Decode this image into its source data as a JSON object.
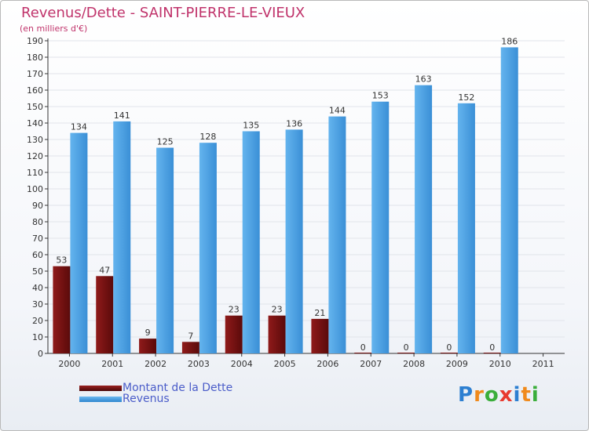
{
  "chart_data": {
    "type": "bar",
    "title": "Revenus/Dette - SAINT-PIERRE-LE-VIEUX",
    "subtitle": "(en milliers d'€)",
    "categories": [
      "2000",
      "2001",
      "2002",
      "2003",
      "2004",
      "2005",
      "2006",
      "2007",
      "2008",
      "2009",
      "2010",
      "2011"
    ],
    "series": [
      {
        "name": "Montant de la Dette",
        "color": "#7a1414",
        "values": [
          53,
          47,
          9,
          7,
          23,
          23,
          21,
          0,
          0,
          0,
          0,
          null
        ]
      },
      {
        "name": "Revenus",
        "color": "#4da3e6",
        "values": [
          134,
          141,
          125,
          128,
          135,
          136,
          144,
          153,
          163,
          152,
          186,
          null
        ]
      }
    ],
    "ylim": [
      0,
      190
    ],
    "ytick_step": 10,
    "grid": true,
    "legend_position": "bottom-left"
  },
  "legend": {
    "debt_label": "Montant de la Dette",
    "revenue_label": "Revenus"
  },
  "logo": {
    "text": "Proxiti",
    "letters": [
      "P",
      "r",
      "o",
      "x",
      "i",
      "t",
      "i"
    ],
    "colors": [
      "#2d7fd1",
      "#f08a1c",
      "#3bae3b",
      "#e83a2f",
      "#2d7fd1",
      "#f08a1c",
      "#3bae3b"
    ]
  }
}
